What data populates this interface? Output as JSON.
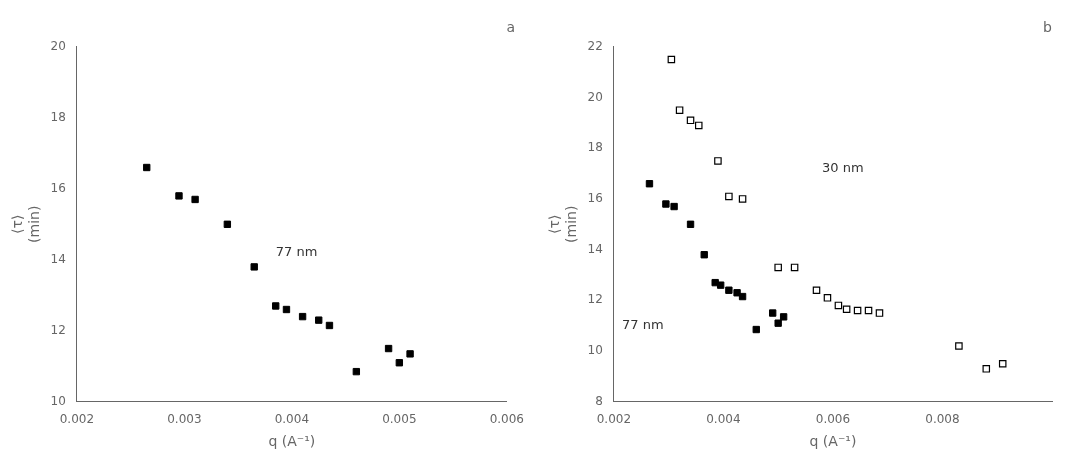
{
  "chart_data": [
    {
      "type": "scatter",
      "title": "a",
      "x_label": "q (A⁻¹)",
      "y_label": "⟨τ⟩\n(min)",
      "xlim": [
        0.002,
        0.006
      ],
      "ylim": [
        10,
        20
      ],
      "xticks": [
        0.002,
        0.003,
        0.004,
        0.005,
        0.006
      ],
      "yticks": [
        10,
        12,
        14,
        16,
        18,
        20
      ],
      "grid": false,
      "annotations": [
        {
          "text": "77 nm",
          "x": 0.00385,
          "y": 14.2
        }
      ],
      "series": [
        {
          "color": "black",
          "marker": "square",
          "x": [
            0.00265,
            0.00295,
            0.0031,
            0.0034,
            0.00365,
            0.00385,
            0.00395,
            0.0041,
            0.00425,
            0.00435,
            0.0046,
            0.0049,
            0.005,
            0.0051
          ],
          "values": [
            16.6,
            15.8,
            15.7,
            15.0,
            13.8,
            12.7,
            12.6,
            12.4,
            12.3,
            12.15,
            10.85,
            11.5,
            11.1,
            11.35
          ]
        }
      ]
    },
    {
      "type": "scatter",
      "title": "b",
      "x_label": "q (A⁻¹)",
      "y_label": "⟨τ⟩\n(min)",
      "xlim": [
        0.002,
        0.01
      ],
      "ylim": [
        8,
        22
      ],
      "xticks": [
        0.002,
        0.004,
        0.006,
        0.008
      ],
      "yticks": [
        8,
        10,
        12,
        14,
        16,
        18,
        20,
        22
      ],
      "grid": false,
      "annotations": [
        {
          "text": "77 nm",
          "x": 0.00215,
          "y": 11.0
        },
        {
          "text": "30 nm",
          "x": 0.0058,
          "y": 17.2
        }
      ],
      "series": [
        {
          "color": "black",
          "marker": "square",
          "x": [
            0.00265,
            0.00295,
            0.0031,
            0.0034,
            0.00365,
            0.00385,
            0.00395,
            0.0041,
            0.00425,
            0.00435,
            0.0046,
            0.0049,
            0.005,
            0.0051
          ],
          "values": [
            16.6,
            15.8,
            15.7,
            15.0,
            13.8,
            12.7,
            12.6,
            12.4,
            12.3,
            12.15,
            10.85,
            11.5,
            11.1,
            11.35
          ]
        },
        {
          "color": "black",
          "marker": "open_square",
          "x": [
            0.00305,
            0.0032,
            0.0034,
            0.00355,
            0.0039,
            0.0041,
            0.00435,
            0.005,
            0.0053,
            0.0057,
            0.0059,
            0.0061,
            0.00625,
            0.00645,
            0.00665,
            0.00685,
            0.0083,
            0.0088,
            0.0091
          ],
          "values": [
            21.5,
            19.5,
            19.1,
            18.9,
            17.5,
            16.1,
            16.0,
            13.3,
            13.3,
            12.4,
            12.1,
            11.8,
            11.65,
            11.6,
            11.6,
            11.5,
            10.2,
            9.3,
            9.5
          ]
        }
      ]
    }
  ]
}
